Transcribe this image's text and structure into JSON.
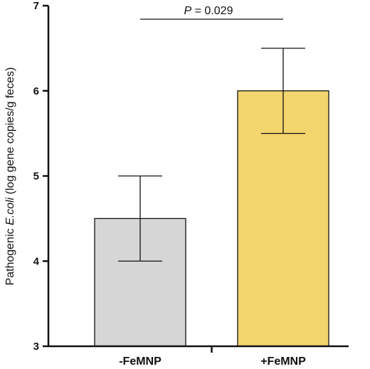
{
  "chart_data": {
    "type": "bar",
    "categories": [
      "-FeMNP",
      "+FeMNP"
    ],
    "values": [
      4.5,
      6.0
    ],
    "error_low": [
      4.0,
      5.5
    ],
    "error_high": [
      5.0,
      6.5
    ],
    "colors": [
      "#d6d6d6",
      "#f3d56e"
    ],
    "ylabel_prefix": "Pathogenic ",
    "ylabel_italic": "E.coli",
    "ylabel_suffix": " (log gene copies/g feces)",
    "ylim": [
      3,
      7
    ],
    "yticks": [
      "3",
      "4",
      "5",
      "6",
      "7"
    ],
    "grid": false,
    "annotation": {
      "p_symbol": "P",
      "p_text": " = 0.029"
    }
  }
}
